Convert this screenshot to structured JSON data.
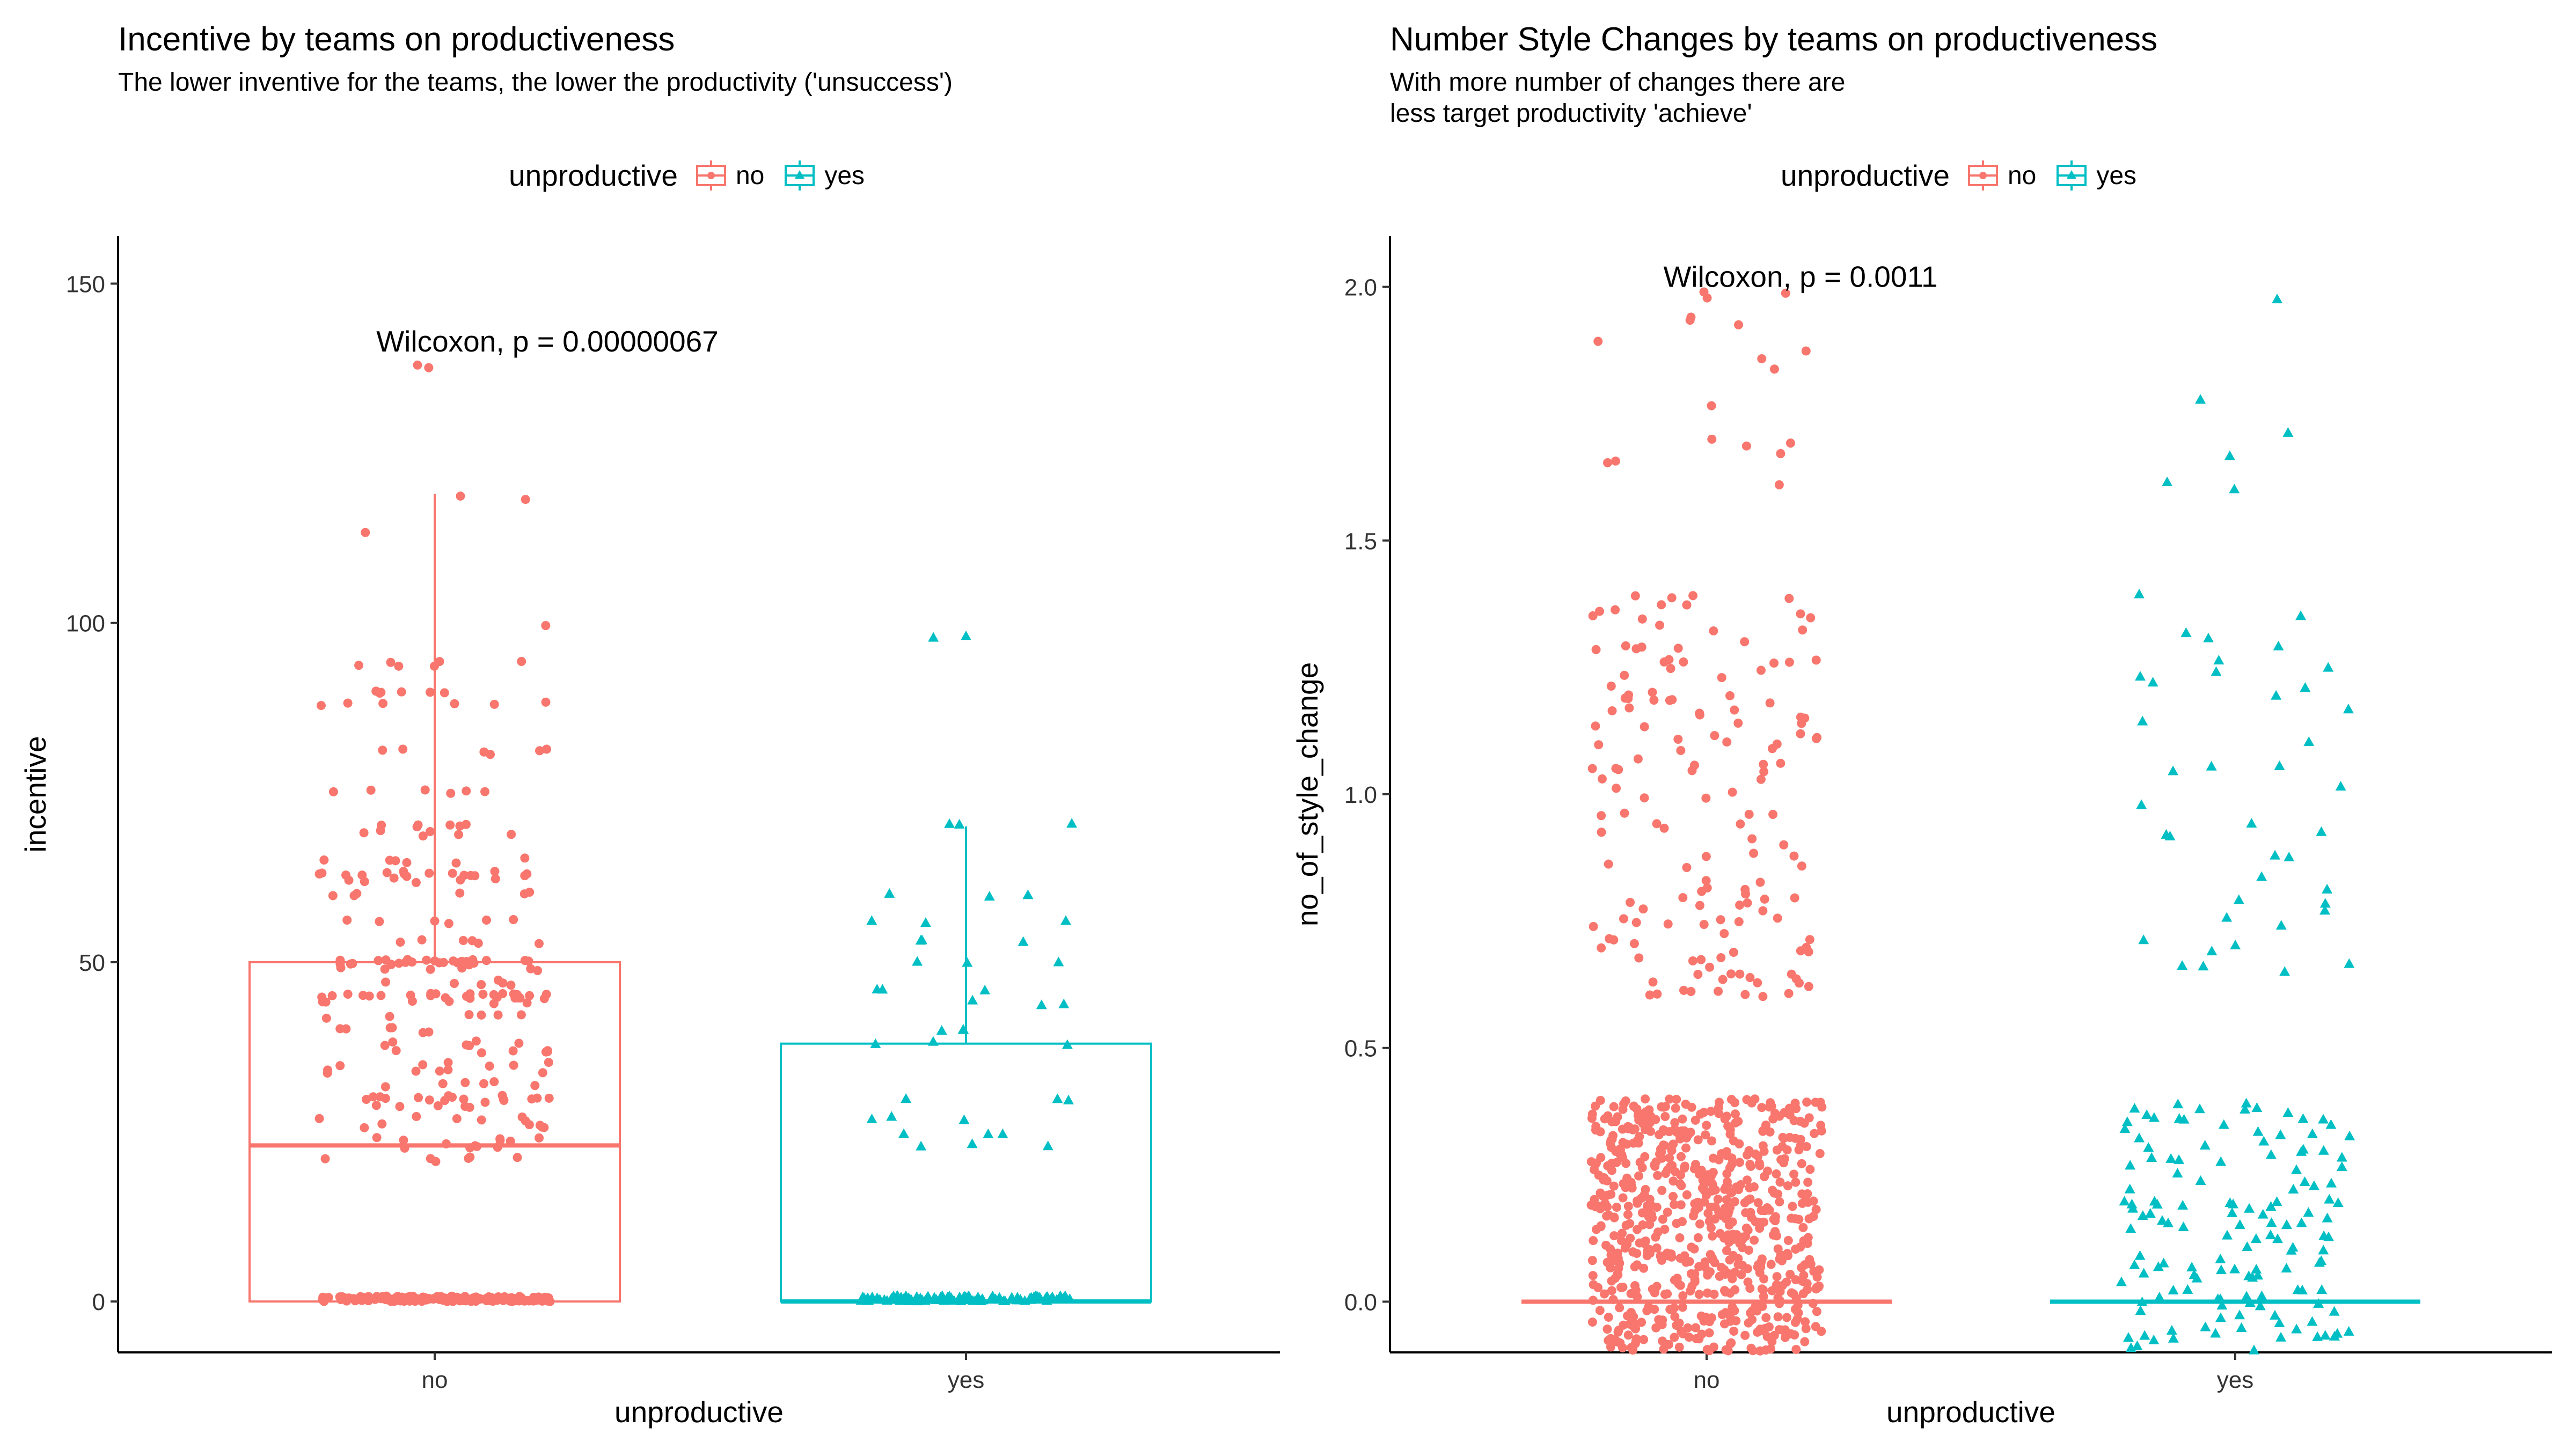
{
  "colors": {
    "no": "#F8766D",
    "yes": "#00BFC4"
  },
  "legend": {
    "title": "unproductive",
    "items": [
      "no",
      "yes"
    ]
  },
  "chart_data": [
    {
      "type": "boxplot+jitter",
      "title": "Incentive by teams on productiveness",
      "subtitle": "The lower inventive for the teams, the lower the productivity ('unsuccess')",
      "xlabel": "unproductive",
      "ylabel": "incentive",
      "categories": [
        "no",
        "yes"
      ],
      "yticks": [
        0,
        50,
        100,
        150
      ],
      "ylim": [
        -7.5,
        157
      ],
      "annotation": "Wilcoxon, p = 0.00000067",
      "boxes": [
        {
          "group": "no",
          "min": 0,
          "q1": 0,
          "median": 23,
          "q3": 50,
          "max": 119,
          "outliers": [
            138
          ]
        },
        {
          "group": "yes",
          "min": 0,
          "q1": 0,
          "median": 0,
          "q3": 38,
          "max": 70,
          "outliers": [
            98
          ]
        }
      ],
      "jitter_levels": {
        "no": [
          0,
          21,
          23,
          24,
          26,
          27,
          29,
          30,
          32,
          34,
          35,
          37,
          38,
          40,
          42,
          44,
          45,
          47,
          49,
          50,
          53,
          56,
          60,
          62,
          63,
          65,
          69,
          70,
          75,
          81,
          88,
          90,
          94,
          100,
          113,
          118,
          119,
          138
        ],
        "yes": [
          0,
          23,
          25,
          27,
          30,
          38,
          40,
          44,
          46,
          50,
          53,
          56,
          60,
          70,
          98
        ]
      }
    },
    {
      "type": "boxplot+jitter",
      "title": "Number Style Changes by teams on productiveness",
      "subtitle": "With more number of changes there are\nless target productivity 'achieve'",
      "xlabel": "unproductive",
      "ylabel": "no_of_style_change",
      "categories": [
        "no",
        "yes"
      ],
      "yticks": [
        0.0,
        0.5,
        1.0,
        1.5,
        2.0
      ],
      "ylim": [
        -0.1,
        2.1
      ],
      "annotation": "Wilcoxon, p = 0.0011",
      "boxes": [
        {
          "group": "no",
          "min": 0,
          "q1": 0,
          "median": 0,
          "q3": 0,
          "max": 0
        },
        {
          "group": "yes",
          "min": 0,
          "q1": 0,
          "median": 0,
          "q3": 0,
          "max": 0
        }
      ],
      "jitter_levels": {
        "no": [
          0,
          1,
          2
        ],
        "yes": [
          0,
          1,
          2
        ]
      }
    }
  ]
}
